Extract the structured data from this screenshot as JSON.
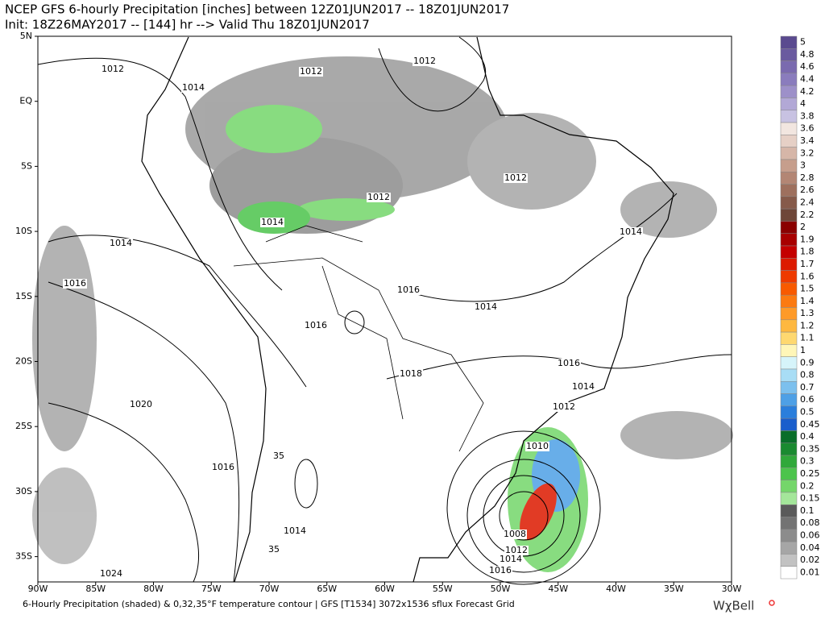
{
  "header": {
    "title": "NCEP GFS 6-hourly Precipitation [inches] between 12Z01JUN2017 -- 18Z01JUN2017",
    "subtitle": "Init: 18Z26MAY2017 -- [144] hr --> Valid Thu 18Z01JUN2017"
  },
  "map": {
    "lat_labels": [
      "5N",
      "EQ",
      "5S",
      "10S",
      "15S",
      "20S",
      "25S",
      "30S",
      "35S"
    ],
    "lon_labels": [
      "90W",
      "85W",
      "80W",
      "75W",
      "70W",
      "65W",
      "60W",
      "55W",
      "50W",
      "45W",
      "40W",
      "35W",
      "30W"
    ],
    "contour_labels": [
      "1012",
      "1014",
      "1012",
      "1012",
      "1012",
      "1012",
      "1014",
      "1014",
      "1014",
      "1016",
      "1016",
      "1014",
      "1016",
      "1016",
      "1018",
      "1014",
      "1012",
      "1020",
      "1010",
      "1016",
      "35",
      "1014",
      "1008",
      "1012",
      "1014",
      "35",
      "1016",
      "1024"
    ]
  },
  "colorbar": {
    "levels": [
      {
        "value": 5,
        "color": "#5a4a8f"
      },
      {
        "value": 4.8,
        "color": "#6a5a9f"
      },
      {
        "value": 4.6,
        "color": "#7a6aaf"
      },
      {
        "value": 4.4,
        "color": "#8a7cbd"
      },
      {
        "value": 4.2,
        "color": "#9d90c9"
      },
      {
        "value": 4,
        "color": "#b2a8d6"
      },
      {
        "value": 3.8,
        "color": "#c8c2e2"
      },
      {
        "value": 3.6,
        "color": "#f2e6e0"
      },
      {
        "value": 3.4,
        "color": "#e6d0c6"
      },
      {
        "value": 3.2,
        "color": "#d6b6a8"
      },
      {
        "value": 3,
        "color": "#c69e8c"
      },
      {
        "value": 2.8,
        "color": "#b38674"
      },
      {
        "value": 2.6,
        "color": "#9e705e"
      },
      {
        "value": 2.4,
        "color": "#865a4a"
      },
      {
        "value": 2.2,
        "color": "#6e4638"
      },
      {
        "value": 2,
        "color": "#8a0000"
      },
      {
        "value": 1.9,
        "color": "#a80000"
      },
      {
        "value": 1.8,
        "color": "#c40000"
      },
      {
        "value": 1.7,
        "color": "#dc1a00"
      },
      {
        "value": 1.6,
        "color": "#ee3a00"
      },
      {
        "value": 1.5,
        "color": "#f85a00"
      },
      {
        "value": 1.4,
        "color": "#fc7a10"
      },
      {
        "value": 1.3,
        "color": "#fe9a28"
      },
      {
        "value": 1.2,
        "color": "#feb840"
      },
      {
        "value": 1.1,
        "color": "#fed870"
      },
      {
        "value": 1,
        "color": "#fff6b8"
      },
      {
        "value": 0.9,
        "color": "#d6f4fa"
      },
      {
        "value": 0.8,
        "color": "#a8ddf5"
      },
      {
        "value": 0.7,
        "color": "#7cc0ee"
      },
      {
        "value": 0.6,
        "color": "#4ea0e6"
      },
      {
        "value": 0.5,
        "color": "#2a7edc"
      },
      {
        "value": 0.45,
        "color": "#1a5ecc"
      },
      {
        "value": 0.4,
        "color": "#0a6e2a"
      },
      {
        "value": 0.35,
        "color": "#1a8a30"
      },
      {
        "value": 0.3,
        "color": "#30a83a"
      },
      {
        "value": 0.25,
        "color": "#4cc44c"
      },
      {
        "value": 0.2,
        "color": "#74d66a"
      },
      {
        "value": 0.15,
        "color": "#a4e69a"
      },
      {
        "value": 0.1,
        "color": "#5a5a5a"
      },
      {
        "value": 0.08,
        "color": "#737373"
      },
      {
        "value": 0.06,
        "color": "#8c8c8c"
      },
      {
        "value": 0.04,
        "color": "#a6a6a6"
      },
      {
        "value": 0.02,
        "color": "#c2c2c2"
      },
      {
        "value": 0.01,
        "color": "#ffffff"
      }
    ]
  },
  "footer": {
    "caption": "6-Hourly Precipitation (shaded) & 0,32,35°F temperature contour | GFS [T1534] 3072x1536 sflux Forecast Grid",
    "brand": "WχBell"
  }
}
